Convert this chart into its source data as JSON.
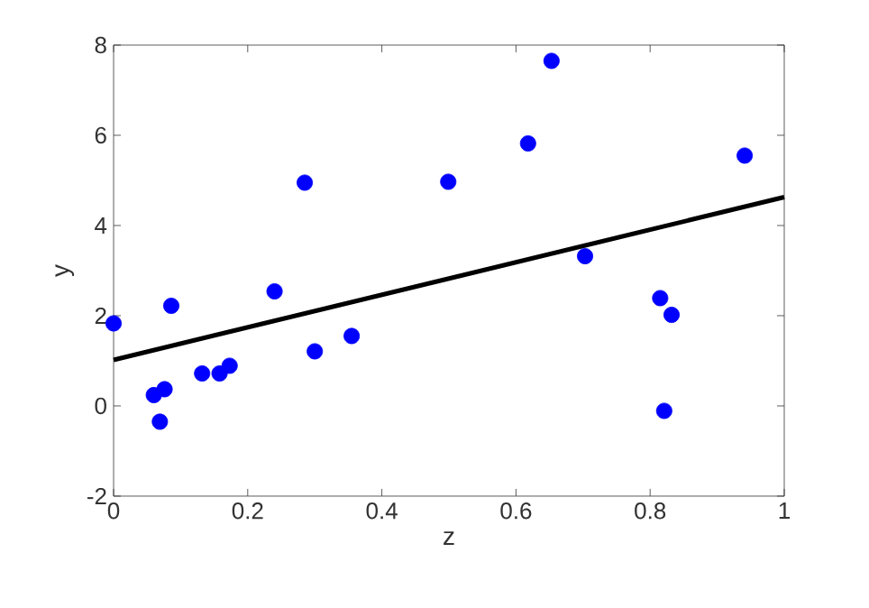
{
  "chart_data": {
    "type": "scatter",
    "xlabel": "z",
    "ylabel": "y",
    "xlim": [
      0,
      1
    ],
    "ylim": [
      -2,
      8
    ],
    "xticks": [
      0,
      0.2,
      0.4,
      0.6,
      0.8,
      1
    ],
    "yticks": [
      -2,
      0,
      2,
      4,
      6,
      8
    ],
    "marker": "circle",
    "series": [
      {
        "color": "#0000ff",
        "x": [
          0,
          0.06,
          0.076,
          0.069,
          0.086,
          0.132,
          0.158,
          0.173,
          0.24,
          0.285,
          0.3,
          0.355,
          0.499,
          0.618,
          0.653,
          0.703,
          0.815,
          0.832,
          0.821,
          0.941
        ],
        "values": [
          1.83,
          0.24,
          0.37,
          -0.35,
          2.22,
          0.72,
          0.72,
          0.89,
          2.54,
          4.95,
          1.21,
          1.55,
          4.97,
          5.82,
          7.65,
          3.32,
          2.39,
          2.02,
          -0.11,
          5.55
        ]
      },
      {
        "type": "line",
        "marker": "none",
        "color": "#000000",
        "x": [
          0,
          1
        ],
        "values": [
          1.02,
          4.63
        ]
      }
    ]
  }
}
